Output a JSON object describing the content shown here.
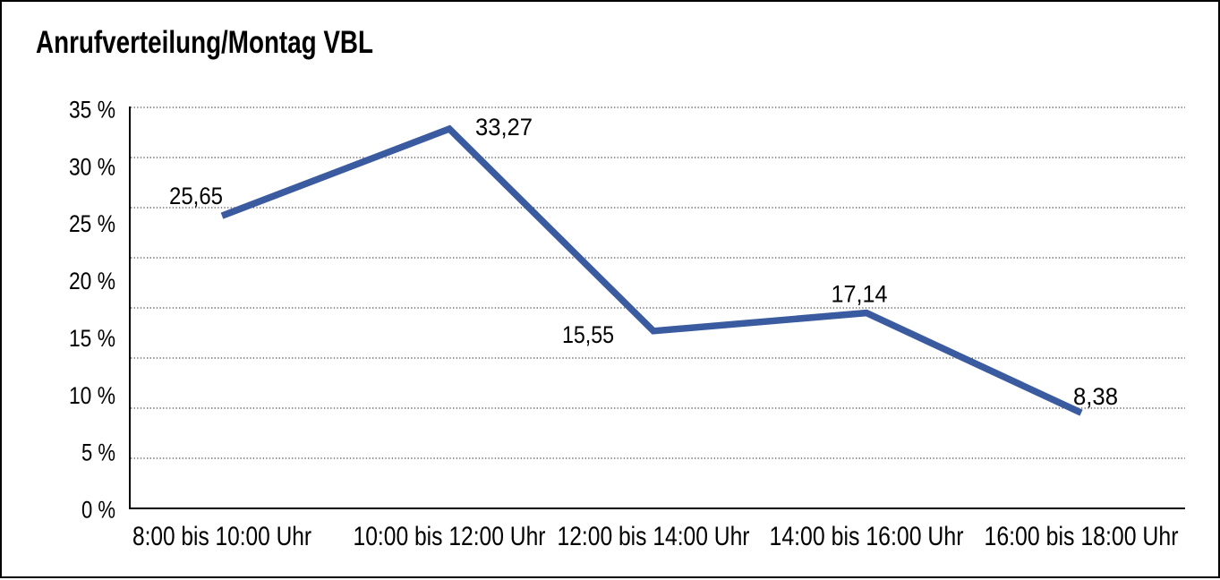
{
  "title": "Anrufverteilung/Montag VBL",
  "chart_data": {
    "type": "line",
    "title": "Anrufverteilung/Montag VBL",
    "categories": [
      "8:00 bis 10:00 Uhr",
      "10:00 bis 12:00 Uhr",
      "12:00 bis 14:00 Uhr",
      "14:00 bis 16:00 Uhr",
      "16:00 bis 18:00 Uhr"
    ],
    "values": [
      25.65,
      33.27,
      15.55,
      17.14,
      8.38
    ],
    "data_labels": [
      "25,65",
      "33,27",
      "15,55",
      "17,14",
      "8,38"
    ],
    "y_tick_labels": [
      "35 %",
      "30 %",
      "25 %",
      "20 %",
      "15 %",
      "10 %",
      "5 %",
      "0 %"
    ],
    "ylim": [
      0,
      35
    ],
    "y_unit": "%",
    "xlabel": "",
    "ylabel": "",
    "legend": "none",
    "grid": "horizontal-dotted",
    "line_color": "#3B5BA0",
    "axis_color": "#000000",
    "grid_color": "#4a4a4a",
    "background_color": "#ffffff",
    "border_color": "#000000"
  }
}
